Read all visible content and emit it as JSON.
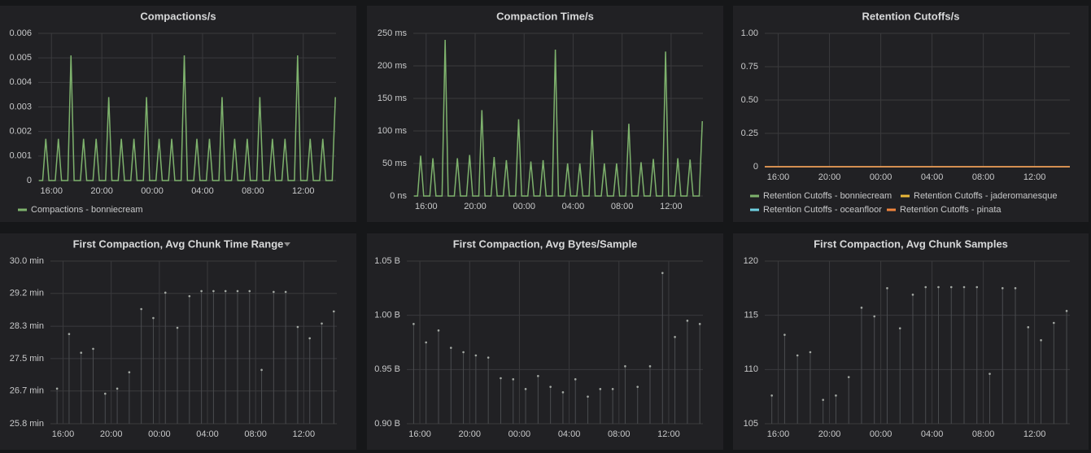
{
  "chart_data": [
    {
      "type": "line",
      "title": "Compactions/s",
      "grid": true,
      "legend": "bottom",
      "xlim": [
        14.95,
        38.6
      ],
      "xticks": [
        {
          "value": 16,
          "label": "16:00"
        },
        {
          "value": 20,
          "label": "20:00"
        },
        {
          "value": 24,
          "label": "00:00"
        },
        {
          "value": 28,
          "label": "04:00"
        },
        {
          "value": 32,
          "label": "08:00"
        },
        {
          "value": 36,
          "label": "12:00"
        }
      ],
      "ylim": [
        0,
        0.006
      ],
      "yticks": [
        0,
        0.001,
        0.002,
        0.003,
        0.004,
        0.005,
        0.006
      ],
      "x": [
        15.0,
        15.3,
        15.55,
        15.8,
        16.3,
        16.55,
        16.8,
        17.3,
        17.55,
        17.8,
        18.3,
        18.55,
        18.8,
        19.3,
        19.55,
        19.8,
        20.3,
        20.55,
        20.8,
        21.3,
        21.55,
        21.8,
        22.3,
        22.55,
        22.8,
        23.3,
        23.55,
        23.8,
        24.3,
        24.55,
        24.8,
        25.3,
        25.55,
        25.8,
        26.3,
        26.55,
        26.8,
        27.3,
        27.55,
        27.8,
        28.3,
        28.55,
        28.8,
        29.3,
        29.55,
        29.8,
        30.3,
        30.55,
        30.8,
        31.3,
        31.55,
        31.8,
        32.3,
        32.55,
        32.8,
        33.3,
        33.55,
        33.8,
        34.3,
        34.55,
        34.8,
        35.3,
        35.55,
        35.8,
        36.3,
        36.55,
        36.8,
        37.3,
        37.55,
        37.8,
        38.3,
        38.55
      ],
      "series": [
        {
          "name": "Compactions - bonniecream",
          "color": "#7eb26d",
          "values": [
            0,
            0,
            0.0017,
            0,
            0,
            0.0017,
            0,
            0,
            0.0051,
            0,
            0,
            0.0017,
            0,
            0,
            0.0017,
            0,
            0,
            0.0034,
            0,
            0,
            0.0017,
            0,
            0,
            0.0017,
            0,
            0,
            0.0034,
            0,
            0,
            0.0017,
            0,
            0,
            0.0017,
            0,
            0,
            0.0051,
            0,
            0,
            0.0017,
            0,
            0,
            0.0017,
            0,
            0,
            0.0034,
            0,
            0,
            0.0017,
            0,
            0,
            0.0017,
            0,
            0,
            0.0034,
            0,
            0,
            0.0017,
            0,
            0,
            0.0017,
            0,
            0,
            0.0051,
            0,
            0,
            0.0017,
            0,
            0,
            0.0017,
            0,
            0,
            0.0034
          ]
        }
      ]
    },
    {
      "type": "line",
      "title": "Compaction Time/s",
      "grid": true,
      "color": "#7eb26d",
      "xlim": [
        14.95,
        38.6
      ],
      "xticks": [
        {
          "value": 16,
          "label": "16:00"
        },
        {
          "value": 20,
          "label": "20:00"
        },
        {
          "value": 24,
          "label": "00:00"
        },
        {
          "value": 28,
          "label": "04:00"
        },
        {
          "value": 32,
          "label": "08:00"
        },
        {
          "value": 36,
          "label": "12:00"
        }
      ],
      "ylim": [
        0,
        250
      ],
      "yticks": [
        {
          "value": 0,
          "label": "0 ns"
        },
        {
          "value": 50,
          "label": "50 ms"
        },
        {
          "value": 100,
          "label": "100 ms"
        },
        {
          "value": 150,
          "label": "150 ms"
        },
        {
          "value": 200,
          "label": "200 ms"
        },
        {
          "value": 250,
          "label": "250 ms"
        }
      ],
      "x": [
        15.0,
        15.3,
        15.55,
        15.8,
        16.3,
        16.55,
        16.8,
        17.3,
        17.55,
        17.8,
        18.3,
        18.55,
        18.8,
        19.3,
        19.55,
        19.8,
        20.3,
        20.55,
        20.8,
        21.3,
        21.55,
        21.8,
        22.3,
        22.55,
        22.8,
        23.3,
        23.55,
        23.8,
        24.3,
        24.55,
        24.8,
        25.3,
        25.55,
        25.8,
        26.3,
        26.55,
        26.8,
        27.3,
        27.55,
        27.8,
        28.3,
        28.55,
        28.8,
        29.3,
        29.55,
        29.8,
        30.3,
        30.55,
        30.8,
        31.3,
        31.55,
        31.8,
        32.3,
        32.55,
        32.8,
        33.3,
        33.55,
        33.8,
        34.3,
        34.55,
        34.8,
        35.3,
        35.55,
        35.8,
        36.3,
        36.55,
        36.8,
        37.3,
        37.55,
        37.8,
        38.3,
        38.55
      ],
      "values": [
        0,
        0,
        62,
        0,
        0,
        58,
        0,
        0,
        240,
        0,
        0,
        58,
        0,
        0,
        63,
        0,
        0,
        132,
        0,
        0,
        60,
        0,
        0,
        55,
        0,
        0,
        118,
        0,
        0,
        53,
        0,
        0,
        55,
        0,
        0,
        225,
        0,
        0,
        50,
        0,
        0,
        50,
        0,
        0,
        101,
        0,
        0,
        50,
        0,
        0,
        50,
        0,
        0,
        111,
        0,
        0,
        52,
        0,
        0,
        57,
        0,
        0,
        222,
        0,
        0,
        58,
        0,
        0,
        56,
        0,
        0,
        115
      ]
    },
    {
      "type": "line",
      "title": "Retention Cutoffs/s",
      "grid": true,
      "legend": "bottom",
      "xlim": [
        14.95,
        38.75
      ],
      "xticks": [
        {
          "value": 16,
          "label": "16:00"
        },
        {
          "value": 20,
          "label": "20:00"
        },
        {
          "value": 24,
          "label": "00:00"
        },
        {
          "value": 28,
          "label": "04:00"
        },
        {
          "value": 32,
          "label": "08:00"
        },
        {
          "value": 36,
          "label": "12:00"
        }
      ],
      "ylim": [
        0,
        1
      ],
      "yticks": [
        0,
        0.25,
        {
          "value": 0.5,
          "label": "0.50"
        },
        0.75,
        {
          "value": 1,
          "label": "1.00"
        }
      ],
      "x": [
        14.95,
        38.75
      ],
      "series": [
        {
          "name": "Retention Cutoffs - bonniecream",
          "color": "#7eb26d",
          "values": [
            0,
            0
          ]
        },
        {
          "name": "Retention Cutoffs - jaderomanesque",
          "color": "#eab839",
          "values": [
            0,
            0
          ]
        },
        {
          "name": "Retention Cutoffs - oceanfloor",
          "color": "#6ed0e0",
          "values": [
            0,
            0
          ]
        },
        {
          "name": "Retention Cutoffs - pinata",
          "color": "#ef843c",
          "values": [
            0,
            0
          ]
        }
      ]
    },
    {
      "type": "scatter",
      "title": "First Compaction, Avg Chunk Time Range",
      "grid": true,
      "color": "#a3a8a3",
      "xlim": [
        14.95,
        38.75
      ],
      "xticks": [
        {
          "value": 16,
          "label": "16:00"
        },
        {
          "value": 20,
          "label": "20:00"
        },
        {
          "value": 24,
          "label": "00:00"
        },
        {
          "value": 28,
          "label": "04:00"
        },
        {
          "value": 32,
          "label": "08:00"
        },
        {
          "value": 36,
          "label": "12:00"
        }
      ],
      "ylim": [
        25.83,
        30
      ],
      "yticks": [
        {
          "value": 25.83,
          "label": "25.8 min"
        },
        {
          "value": 26.67,
          "label": "26.7 min"
        },
        {
          "value": 27.5,
          "label": "27.5 min"
        },
        {
          "value": 28.33,
          "label": "28.3 min"
        },
        {
          "value": 29.17,
          "label": "29.2 min"
        },
        {
          "value": 30,
          "label": "30.0 min"
        }
      ],
      "x": [
        15.5,
        16.5,
        17.5,
        18.5,
        19.5,
        20.5,
        21.5,
        22.5,
        23.5,
        24.5,
        25.5,
        26.5,
        27.5,
        28.5,
        29.5,
        30.5,
        31.5,
        32.5,
        33.5,
        34.5,
        35.5,
        36.5,
        37.5,
        38.5
      ],
      "values": [
        26.73,
        28.13,
        27.65,
        27.75,
        26.6,
        26.73,
        27.15,
        28.77,
        28.54,
        29.19,
        28.29,
        29.1,
        29.23,
        29.23,
        29.23,
        29.23,
        29.23,
        27.21,
        29.21,
        29.21,
        28.31,
        28.02,
        28.4,
        28.71
      ]
    },
    {
      "type": "scatter",
      "title": "First Compaction, Avg Bytes/Sample",
      "grid": true,
      "color": "#a3a8a3",
      "xlim": [
        14.95,
        38.75
      ],
      "xticks": [
        {
          "value": 16,
          "label": "16:00"
        },
        {
          "value": 20,
          "label": "20:00"
        },
        {
          "value": 24,
          "label": "00:00"
        },
        {
          "value": 28,
          "label": "04:00"
        },
        {
          "value": 32,
          "label": "08:00"
        },
        {
          "value": 36,
          "label": "12:00"
        }
      ],
      "ylim": [
        0.9,
        1.05
      ],
      "yticks": [
        {
          "value": 0.9,
          "label": "0.90 B"
        },
        {
          "value": 0.95,
          "label": "0.95 B"
        },
        {
          "value": 1,
          "label": "1.00 B"
        },
        {
          "value": 1.05,
          "label": "1.05 B"
        }
      ],
      "x": [
        15.5,
        16.5,
        17.5,
        18.5,
        19.5,
        20.5,
        21.5,
        22.5,
        23.5,
        24.5,
        25.5,
        26.5,
        27.5,
        28.5,
        29.5,
        30.5,
        31.5,
        32.5,
        33.5,
        34.5,
        35.5,
        36.5,
        37.5,
        38.5
      ],
      "values": [
        0.992,
        0.975,
        0.986,
        0.97,
        0.966,
        0.963,
        0.961,
        0.942,
        0.941,
        0.932,
        0.944,
        0.934,
        0.929,
        0.941,
        0.925,
        0.932,
        0.932,
        0.953,
        0.934,
        0.953,
        1.039,
        0.98,
        0.995,
        0.992
      ]
    },
    {
      "type": "scatter",
      "title": "First Compaction, Avg Chunk Samples",
      "grid": true,
      "color": "#a3a8a3",
      "xlim": [
        14.95,
        38.75
      ],
      "xticks": [
        {
          "value": 16,
          "label": "16:00"
        },
        {
          "value": 20,
          "label": "20:00"
        },
        {
          "value": 24,
          "label": "00:00"
        },
        {
          "value": 28,
          "label": "04:00"
        },
        {
          "value": 32,
          "label": "08:00"
        },
        {
          "value": 36,
          "label": "12:00"
        }
      ],
      "ylim": [
        105,
        120
      ],
      "yticks": [
        105,
        110,
        115,
        120
      ],
      "x": [
        15.5,
        16.5,
        17.5,
        18.5,
        19.5,
        20.5,
        21.5,
        22.5,
        23.5,
        24.5,
        25.5,
        26.5,
        27.5,
        28.5,
        29.5,
        30.5,
        31.5,
        32.5,
        33.5,
        34.5,
        35.5,
        36.5,
        37.5,
        38.5
      ],
      "values": [
        107.6,
        113.2,
        111.3,
        111.6,
        107.2,
        107.6,
        109.3,
        115.7,
        114.9,
        117.5,
        113.8,
        116.9,
        117.6,
        117.6,
        117.6,
        117.6,
        117.6,
        109.6,
        117.5,
        117.5,
        113.9,
        112.7,
        114.3,
        115.4
      ]
    }
  ]
}
